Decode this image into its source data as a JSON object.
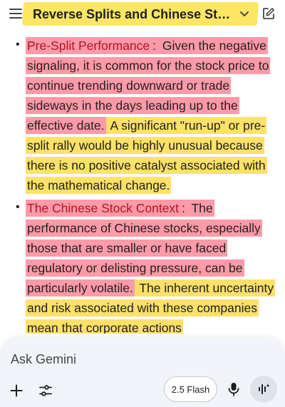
{
  "header": {
    "title": "Reverse Splits and Chinese Stoc...",
    "menu_icon": "hamburger-menu-icon",
    "dropdown_icon": "chevron-down-icon",
    "new_chat_icon": "edit-icon"
  },
  "content": {
    "bullets": [
      {
        "heading": "Pre-Split Performance",
        "colon": ":",
        "red_text": " Given the negative signaling, it is common for the stock price to continue trending downward or trade sideways in the days leading up to the effective date.",
        "yellow_text": " A significant \"run-up\" or pre-split rally would be highly unusual because there is no positive catalyst associated with the mathematical change."
      },
      {
        "heading": "The Chinese Stock Context",
        "colon": ":",
        "red_text": " The performance of Chinese stocks, especially those that are smaller or have faced regulatory or delisting pressure, can be particularly volatile.",
        "yellow_text": " The inherent uncertainty and risk associated with these companies mean that corporate actions"
      }
    ]
  },
  "prompt": {
    "placeholder": "Ask Gemini",
    "model_label": "2.5 Flash",
    "icons": {
      "add": "plus-icon",
      "tools": "tools-icon",
      "mic": "microphone-icon",
      "live": "live-audio-icon"
    }
  },
  "colors": {
    "highlight_red": "#ff5c72",
    "highlight_yellow": "#fdd940",
    "heading_red": "#b3121f",
    "prompt_bg": "#f1f4f9"
  }
}
